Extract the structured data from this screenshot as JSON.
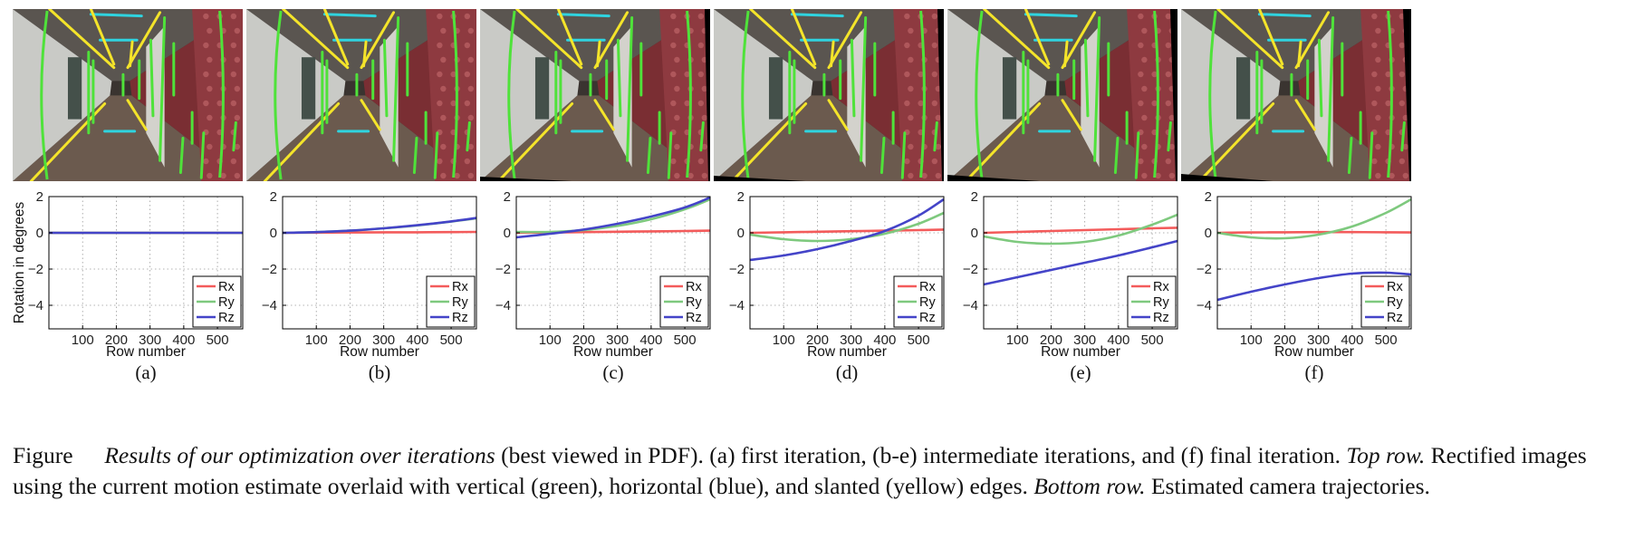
{
  "figure": {
    "panel_labels": [
      "(a)",
      "(b)",
      "(c)",
      "(d)",
      "(e)",
      "(f)"
    ],
    "caption": {
      "figure_word": "Figure",
      "title_italic": "Results of our optimization over iterations",
      "text1": " (best viewed in PDF). (a) first iteration, (b-e) intermediate iterations, and (f) final iteration. ",
      "top_row_italic": "Top row.",
      "text2": " Rectified images using the current motion estimate overlaid with vertical (green), horizontal (blue), and slanted (yellow) edges. ",
      "bottom_row_italic": "Bottom row.",
      "text3": " Estimated camera trajectories."
    },
    "edge_colors": {
      "vertical": "#4fe23a",
      "horizontal": "#2fd3df",
      "slanted": "#f4e42a"
    }
  },
  "chart_data": [
    {
      "type": "line",
      "panel": "(a)",
      "xlabel": "Row number",
      "ylabel": "Rotation in degrees",
      "xlim": [
        0,
        575
      ],
      "ylim": [
        -5.3,
        2
      ],
      "xticks": [
        100,
        200,
        300,
        400,
        500
      ],
      "yticks": [
        2,
        0,
        -2,
        -4
      ],
      "grid": true,
      "legend_position": "bottom-right",
      "x": [
        0,
        100,
        200,
        300,
        400,
        500,
        575
      ],
      "series": [
        {
          "name": "Rx",
          "color": "#f35b5b",
          "values": [
            0,
            0,
            0,
            0,
            0,
            0,
            0
          ]
        },
        {
          "name": "Ry",
          "color": "#7ec97e",
          "values": [
            0,
            0,
            0,
            0,
            0,
            0,
            0
          ]
        },
        {
          "name": "Rz",
          "color": "#4444c8",
          "values": [
            0,
            0,
            0,
            0,
            0,
            0,
            0
          ]
        }
      ]
    },
    {
      "type": "line",
      "panel": "(b)",
      "xlabel": "Row number",
      "ylabel": "",
      "xlim": [
        0,
        575
      ],
      "ylim": [
        -5.3,
        2
      ],
      "xticks": [
        100,
        200,
        300,
        400,
        500
      ],
      "yticks": [
        2,
        0,
        -2,
        -4
      ],
      "grid": true,
      "legend_position": "bottom-right",
      "x": [
        0,
        100,
        200,
        300,
        400,
        500,
        575
      ],
      "series": [
        {
          "name": "Rx",
          "color": "#f35b5b",
          "values": [
            0,
            0.01,
            0.02,
            0.03,
            0.03,
            0.04,
            0.05
          ]
        },
        {
          "name": "Ry",
          "color": "#7ec97e",
          "values": [
            0,
            0.04,
            0.12,
            0.25,
            0.41,
            0.62,
            0.8
          ]
        },
        {
          "name": "Rz",
          "color": "#4444c8",
          "values": [
            0,
            0.04,
            0.12,
            0.25,
            0.42,
            0.63,
            0.82
          ]
        }
      ]
    },
    {
      "type": "line",
      "panel": "(c)",
      "xlabel": "Row number",
      "ylabel": "",
      "xlim": [
        0,
        575
      ],
      "ylim": [
        -5.3,
        2
      ],
      "xticks": [
        100,
        200,
        300,
        400,
        500
      ],
      "yticks": [
        2,
        0,
        -2,
        -4
      ],
      "grid": true,
      "legend_position": "bottom-right",
      "x": [
        0,
        100,
        200,
        300,
        400,
        500,
        575
      ],
      "series": [
        {
          "name": "Rx",
          "color": "#f35b5b",
          "values": [
            0,
            0.02,
            0.04,
            0.06,
            0.08,
            0.1,
            0.12
          ]
        },
        {
          "name": "Ry",
          "color": "#7ec97e",
          "values": [
            0.05,
            0.05,
            0.15,
            0.38,
            0.75,
            1.3,
            1.85
          ]
        },
        {
          "name": "Rz",
          "color": "#4444c8",
          "values": [
            -0.25,
            -0.05,
            0.18,
            0.5,
            0.9,
            1.4,
            1.95
          ]
        }
      ]
    },
    {
      "type": "line",
      "panel": "(d)",
      "xlabel": "Row number",
      "ylabel": "",
      "xlim": [
        0,
        575
      ],
      "ylim": [
        -5.3,
        2
      ],
      "xticks": [
        100,
        200,
        300,
        400,
        500
      ],
      "yticks": [
        2,
        0,
        -2,
        -4
      ],
      "grid": true,
      "legend_position": "bottom-right",
      "x": [
        0,
        100,
        200,
        300,
        400,
        500,
        575
      ],
      "series": [
        {
          "name": "Rx",
          "color": "#f35b5b",
          "values": [
            0,
            0.03,
            0.06,
            0.09,
            0.12,
            0.15,
            0.18
          ]
        },
        {
          "name": "Ry",
          "color": "#7ec97e",
          "values": [
            -0.1,
            -0.35,
            -0.45,
            -0.35,
            -0.05,
            0.5,
            1.1
          ]
        },
        {
          "name": "Rz",
          "color": "#4444c8",
          "values": [
            -1.5,
            -1.25,
            -0.9,
            -0.45,
            0.1,
            0.95,
            1.85
          ]
        }
      ]
    },
    {
      "type": "line",
      "panel": "(e)",
      "xlabel": "Row number",
      "ylabel": "",
      "xlim": [
        0,
        575
      ],
      "ylim": [
        -5.3,
        2
      ],
      "xticks": [
        100,
        200,
        300,
        400,
        500
      ],
      "yticks": [
        2,
        0,
        -2,
        -4
      ],
      "grid": true,
      "legend_position": "bottom-right",
      "x": [
        0,
        100,
        200,
        300,
        400,
        500,
        575
      ],
      "series": [
        {
          "name": "Rx",
          "color": "#f35b5b",
          "values": [
            0,
            0.05,
            0.1,
            0.15,
            0.2,
            0.25,
            0.28
          ]
        },
        {
          "name": "Ry",
          "color": "#7ec97e",
          "values": [
            -0.2,
            -0.5,
            -0.6,
            -0.5,
            -0.15,
            0.45,
            1.0
          ]
        },
        {
          "name": "Rz",
          "color": "#4444c8",
          "values": [
            -2.85,
            -2.45,
            -2.05,
            -1.65,
            -1.25,
            -0.8,
            -0.45
          ]
        }
      ]
    },
    {
      "type": "line",
      "panel": "(f)",
      "xlabel": "Row number",
      "ylabel": "",
      "xlim": [
        0,
        575
      ],
      "ylim": [
        -5.3,
        2
      ],
      "xticks": [
        100,
        200,
        300,
        400,
        500
      ],
      "yticks": [
        2,
        0,
        -2,
        -4
      ],
      "grid": true,
      "legend_position": "bottom-right",
      "x": [
        0,
        100,
        200,
        300,
        400,
        500,
        575
      ],
      "series": [
        {
          "name": "Rx",
          "color": "#f35b5b",
          "values": [
            0,
            0.02,
            0.03,
            0.04,
            0.04,
            0.03,
            0.02
          ]
        },
        {
          "name": "Ry",
          "color": "#7ec97e",
          "values": [
            0,
            -0.25,
            -0.3,
            -0.1,
            0.35,
            1.1,
            1.85
          ]
        },
        {
          "name": "Rz",
          "color": "#4444c8",
          "values": [
            -3.7,
            -3.25,
            -2.85,
            -2.5,
            -2.25,
            -2.2,
            -2.3
          ]
        }
      ]
    }
  ]
}
